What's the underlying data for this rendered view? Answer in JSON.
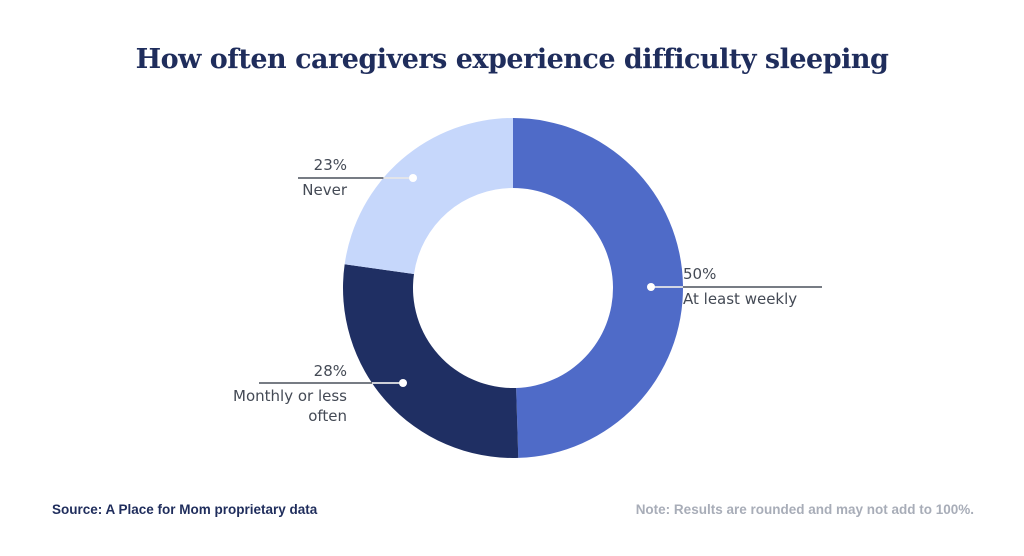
{
  "chart_data": {
    "type": "pie",
    "variant": "donut",
    "title": "How often caregivers experience difficulty sleeping",
    "slices": [
      {
        "label": "At least weekly",
        "value": 50,
        "value_label": "50%",
        "color": "#4f6bc8"
      },
      {
        "label": "Monthly or less often",
        "value": 28,
        "value_label": "28%",
        "color": "#1f2f63"
      },
      {
        "label": "Never",
        "value": 23,
        "value_label": "23%",
        "color": "#c6d7fb"
      }
    ],
    "start": "top",
    "direction": "clockwise"
  },
  "footer": {
    "source": "Source: A Place for Mom proprietary data",
    "note": "Note: Results are rounded and may not add to 100%."
  }
}
